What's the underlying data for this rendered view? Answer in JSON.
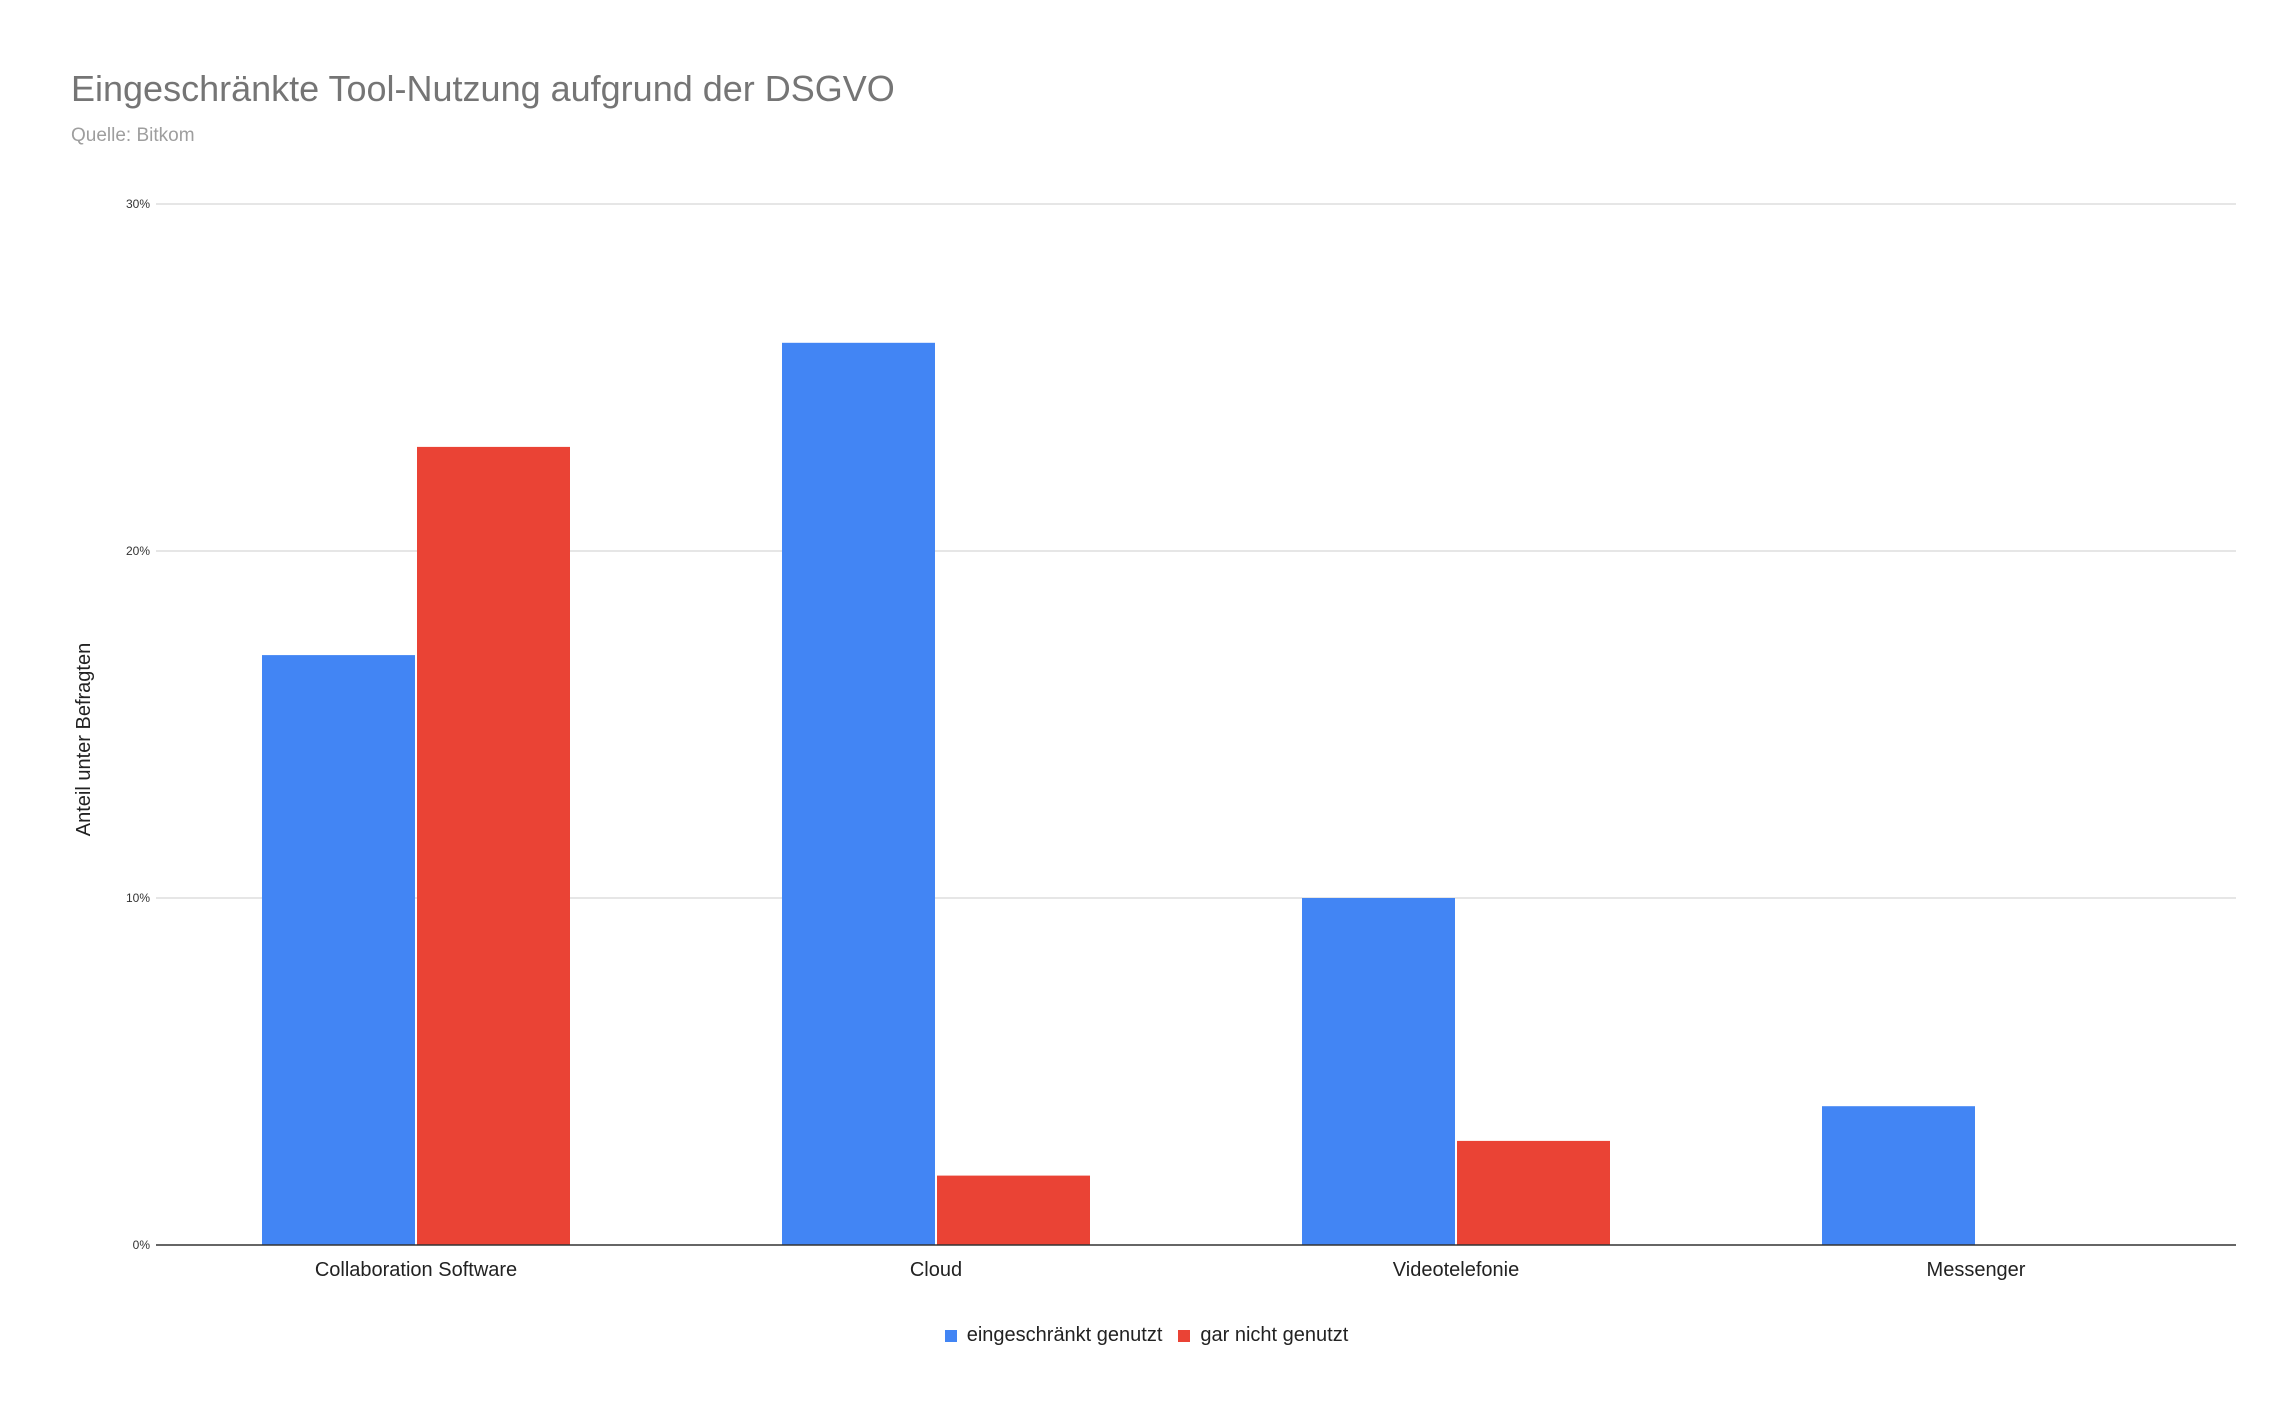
{
  "chart_data": {
    "type": "bar",
    "title": "Eingeschränkte Tool-Nutzung aufgrund der DSGVO",
    "subtitle": "Quelle: Bitkom",
    "xlabel": "",
    "ylabel": "Anteil unter Befragten",
    "categories": [
      "Collaboration Software",
      "Cloud",
      "Videotelefonie",
      "Messenger"
    ],
    "series": [
      {
        "name": "eingeschränkt genutzt",
        "values": [
          17,
          26,
          10,
          4
        ],
        "color": "#4285f4"
      },
      {
        "name": "gar nicht genutzt",
        "values": [
          23,
          2,
          3,
          0
        ],
        "color": "#ea4335"
      }
    ],
    "ylim": [
      0,
      30
    ],
    "yticks": [
      0,
      10,
      20,
      30
    ],
    "ytick_labels": [
      "0%",
      "10%",
      "20%",
      "30%"
    ],
    "grid": true,
    "legend_position": "bottom"
  }
}
